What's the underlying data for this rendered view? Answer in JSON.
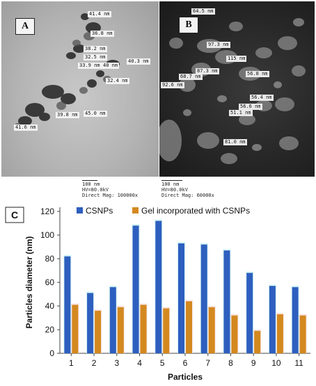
{
  "panels": {
    "a": {
      "letter": "A",
      "measurements": [
        "41.4 nm",
        "36.8 nm",
        "38.2 nm",
        "32.5 nm",
        "40.3 nm",
        "33.9 nm",
        "40 nm",
        "32.4 nm",
        "39.8 nm",
        "45.0 nm",
        "41.6 nm"
      ],
      "scale_label": "100 nm",
      "hv": "HV=80.0kV",
      "mag": "Direct Mag: 100000x"
    },
    "b": {
      "letter": "B",
      "measurements": [
        "64.5 nm",
        "97.3 nm",
        "115 nm",
        "87.3 nm",
        "68.7 nm",
        "56.8 nm",
        "92.6 nm",
        "56.4 nm",
        "56.6 nm",
        "51.1 nm",
        "81.0 nm"
      ],
      "scale_label": "100 nm",
      "hv": "HV=80.0kV",
      "mag": "Direct Mag: 60000x"
    }
  },
  "chart_data": {
    "type": "bar",
    "panel_letter": "C",
    "categories": [
      "1",
      "2",
      "3",
      "4",
      "5",
      "6",
      "7",
      "8",
      "9",
      "10",
      "11"
    ],
    "series": [
      {
        "name": "CSNPs",
        "color": "#2e5fbf",
        "values": [
          82,
          51,
          56,
          108,
          112,
          93,
          92,
          87,
          68,
          57,
          56
        ]
      },
      {
        "name": "Gel incorporated with CSNPs",
        "color": "#d4891f",
        "values": [
          41,
          36,
          39,
          41,
          38,
          44,
          39,
          32,
          19,
          33,
          32
        ]
      }
    ],
    "xlabel": "Particles",
    "ylabel": "Particles diameter (nm)",
    "ylim": [
      0,
      120
    ],
    "yticks": [
      0,
      20,
      40,
      60,
      80,
      100,
      120
    ],
    "grid": false,
    "legend_position": "top"
  }
}
